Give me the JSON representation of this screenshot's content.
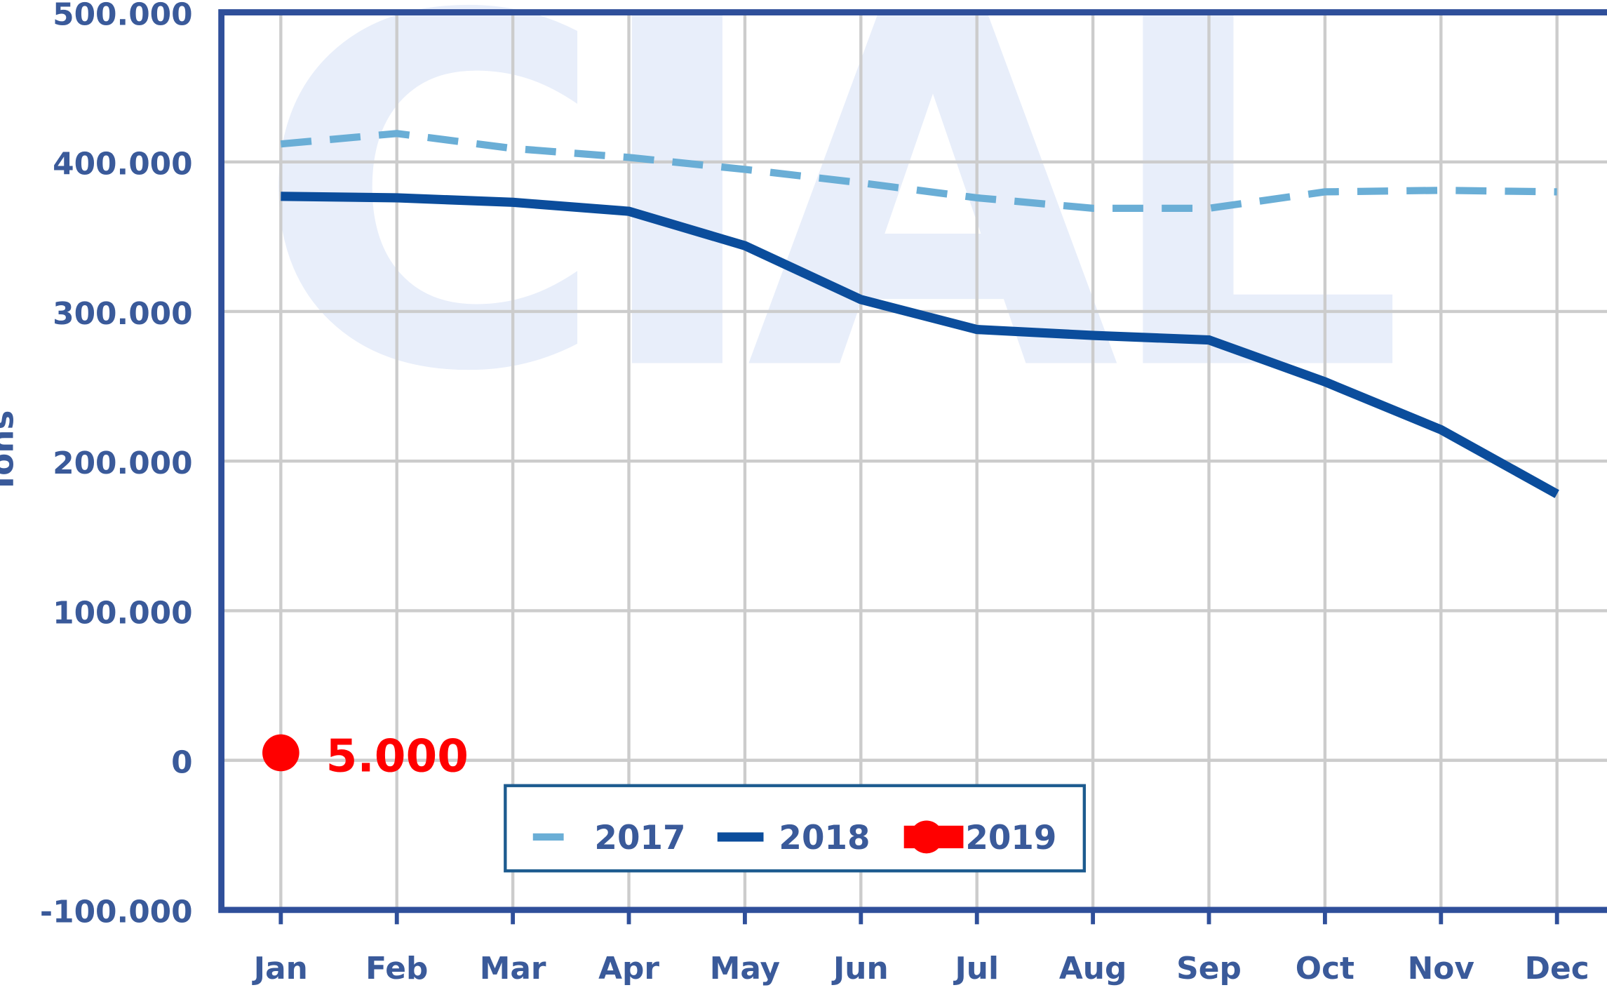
{
  "chart_data": {
    "type": "line",
    "watermark": "CIAL",
    "y_label": "Tons",
    "categories": [
      "Jan",
      "Feb",
      "Mar",
      "Apr",
      "May",
      "Jun",
      "Jul",
      "Aug",
      "Sep",
      "Oct",
      "Nov",
      "Dec"
    ],
    "series": [
      {
        "name": "2017",
        "color": "#6aaed6",
        "style": "dashed",
        "values": [
          412000,
          419000,
          409000,
          403000,
          395000,
          386000,
          376000,
          369000,
          369000,
          380000,
          381000,
          380000
        ]
      },
      {
        "name": "2018",
        "color": "#0b4d9c",
        "style": "solid",
        "values": [
          377000,
          376000,
          373000,
          367000,
          344000,
          308000,
          288000,
          284000,
          281000,
          253000,
          221000,
          178000
        ]
      },
      {
        "name": "2019",
        "color": "#ff0000",
        "style": "marker",
        "values": [
          5000,
          null,
          null,
          null,
          null,
          null,
          null,
          null,
          null,
          null,
          null,
          null
        ],
        "value_labels": [
          "5.000",
          null,
          null,
          null,
          null,
          null,
          null,
          null,
          null,
          null,
          null,
          null
        ]
      }
    ],
    "ylim": [
      -100000,
      500000
    ],
    "yticks": [
      {
        "value": -100000,
        "label": "-100.000"
      },
      0,
      {
        "value": 100000,
        "label": "100.000"
      },
      {
        "value": 200000,
        "label": "200.000"
      },
      {
        "value": 300000,
        "label": "300.000"
      },
      {
        "value": 400000,
        "label": "400.000"
      },
      {
        "value": 500000,
        "label": "500.000"
      }
    ],
    "grid": true,
    "legend": "bottom"
  }
}
